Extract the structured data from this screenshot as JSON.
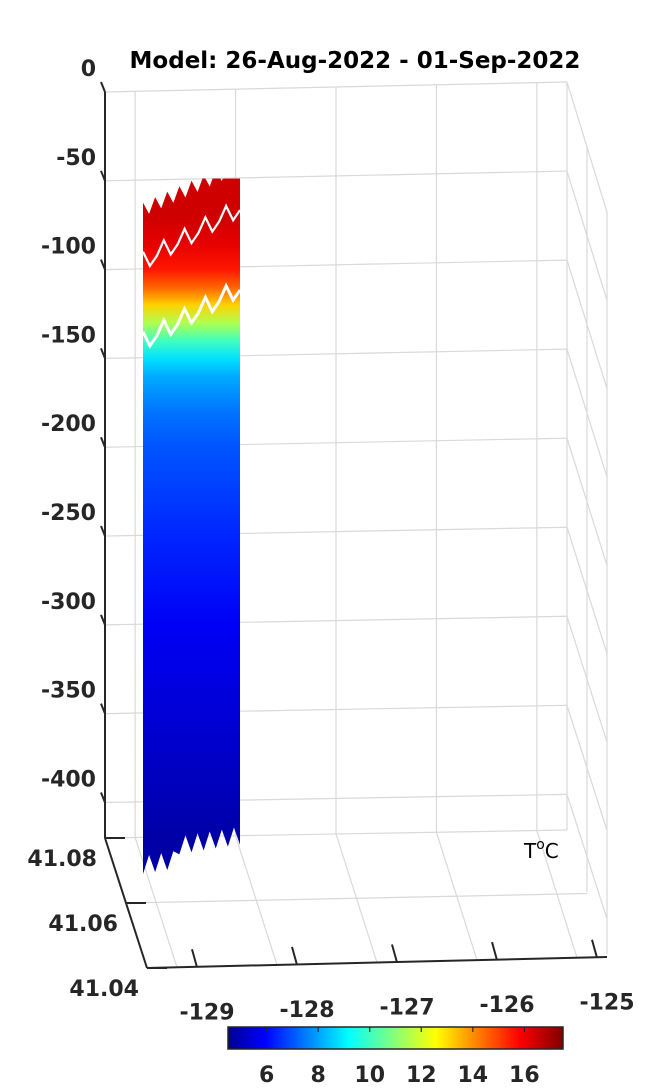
{
  "chart_data": {
    "type": "3d-surface",
    "title": "Model: 26-Aug-2022 - 01-Sep-2022",
    "z_ticks": [
      "0",
      "-50",
      "-100",
      "-150",
      "-200",
      "-250",
      "-300",
      "-350",
      "-400"
    ],
    "z_range": [
      -420,
      0
    ],
    "y_ticks": [
      "41.08",
      "41.06",
      "41.04"
    ],
    "x_ticks": [
      "-129",
      "-128",
      "-127",
      "-126",
      "-125"
    ],
    "x_range": [
      -129.3,
      -124.7
    ],
    "colorbar": {
      "label_prefix": "T",
      "label_superscript": "o",
      "label_suffix": "C",
      "ticks": [
        "6",
        "8",
        "10",
        "12",
        "14",
        "16"
      ],
      "range": [
        4.5,
        17.5
      ],
      "colormap": "jet"
    },
    "temperature_profile": {
      "depth": [
        -60,
        -70,
        -85,
        -100,
        -110,
        -120,
        -130,
        -140,
        -150,
        -160,
        -180,
        -200,
        -250,
        -300,
        -350,
        -400,
        -420
      ],
      "temp": [
        16.5,
        16.5,
        16.2,
        15.6,
        14.6,
        13.2,
        11.6,
        10.2,
        9.0,
        8.3,
        7.6,
        7.2,
        6.6,
        6.0,
        5.6,
        5.2,
        5.0
      ]
    },
    "contours": [
      {
        "level": "upper",
        "depth_mean": -95
      },
      {
        "level": "lower",
        "depth_mean": -140
      }
    ],
    "grid": true
  }
}
